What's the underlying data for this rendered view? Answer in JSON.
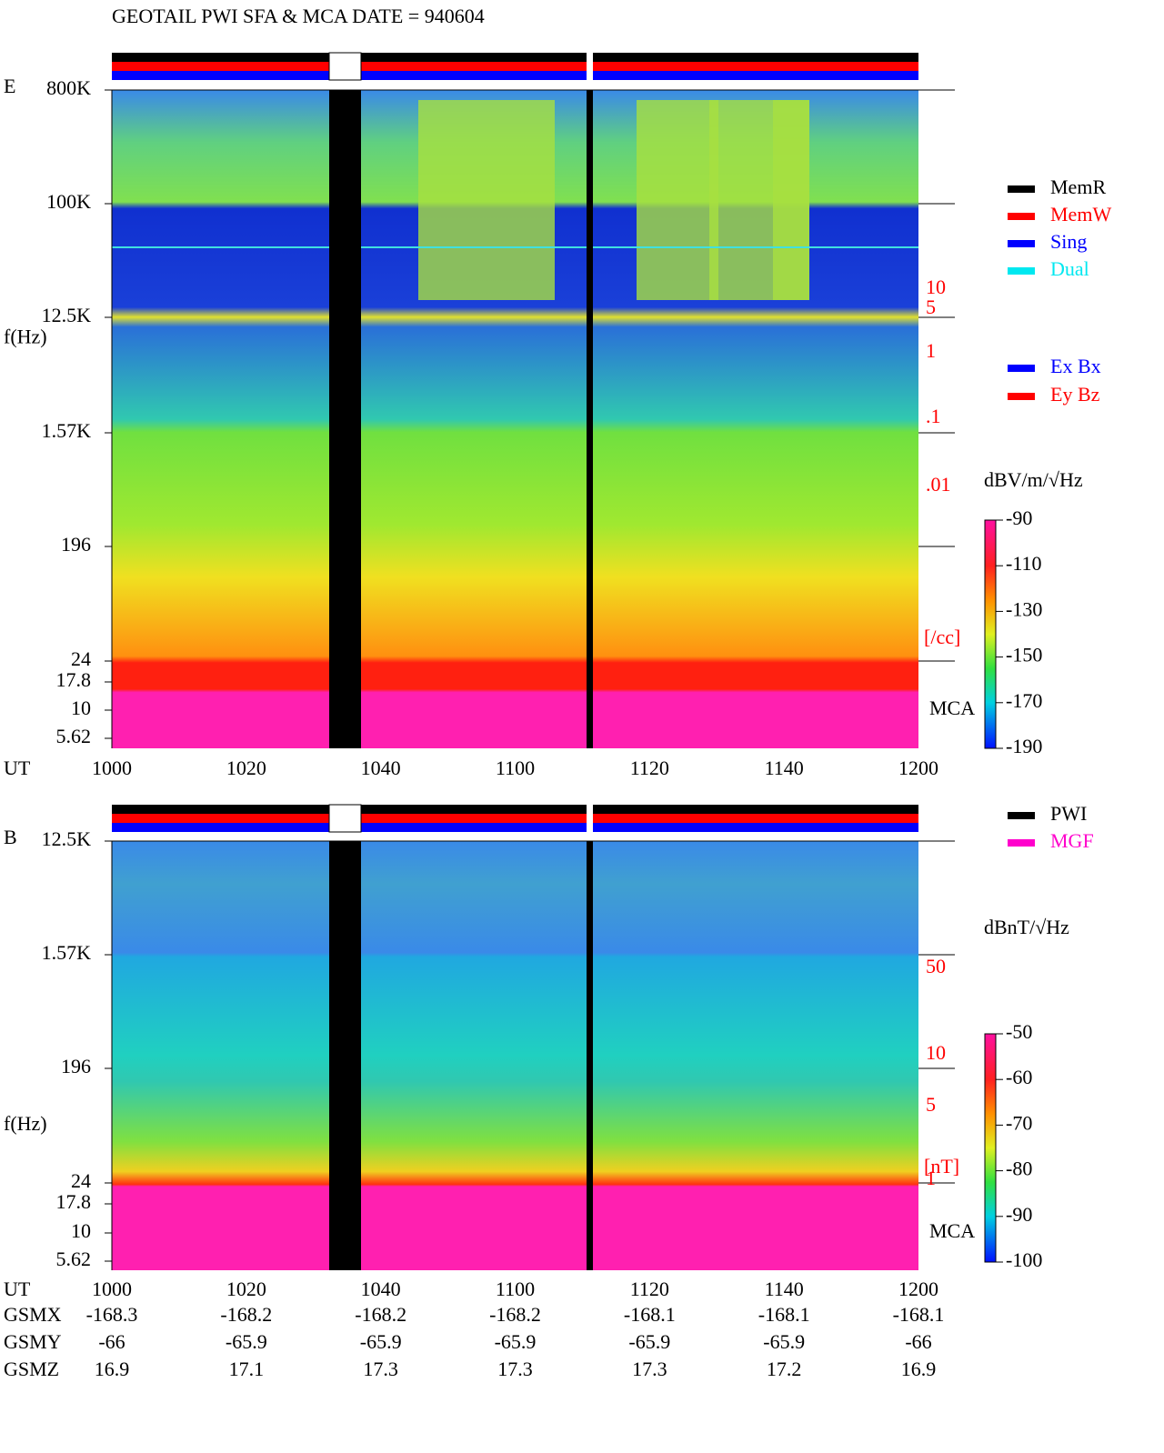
{
  "title": "GEOTAIL  PWI SFA & MCA   DATE = 940604",
  "panels": [
    {
      "label": "E",
      "y_label": "f(Hz)",
      "freq_ticks": [
        "800K",
        "100K",
        "12.5K",
        "1.57K",
        "196",
        "24",
        "17.8",
        "10",
        "5.62"
      ],
      "x_label": "UT",
      "x_ticks": [
        "1000",
        "1020",
        "1040",
        "1100",
        "1120",
        "1140",
        "1200"
      ],
      "right_ticks": [
        "10",
        "5",
        "1",
        ".1",
        ".01"
      ],
      "right_unit": "[/cc]",
      "mca_label": "MCA",
      "colorbar": {
        "unit": "dBV/m/√Hz",
        "range": [
          -190,
          -90
        ],
        "ticks": [
          -90,
          -110,
          -130,
          -150,
          -170,
          -190
        ]
      }
    },
    {
      "label": "B",
      "y_label": "f(Hz)",
      "freq_ticks": [
        "12.5K",
        "1.57K",
        "196",
        "24",
        "17.8",
        "10",
        "5.62"
      ],
      "x_label": "UT",
      "x_ticks": [
        "1000",
        "1020",
        "1040",
        "1100",
        "1120",
        "1140",
        "1200"
      ],
      "right_ticks": [
        "50",
        "10",
        "5",
        "1"
      ],
      "right_unit": "[nT]",
      "mca_label": "MCA",
      "colorbar": {
        "unit": "dBnT/√Hz",
        "range": [
          -100,
          -50
        ],
        "ticks": [
          -50,
          -60,
          -70,
          -80,
          -90,
          -100
        ]
      }
    }
  ],
  "legend_modes": [
    {
      "name": "MemR",
      "color": "#000000"
    },
    {
      "name": "MemW",
      "color": "#ff0000"
    },
    {
      "name": "Sing",
      "color": "#0000ff"
    },
    {
      "name": "Dual",
      "color": "#00e8f0"
    }
  ],
  "legend_components": [
    {
      "name": "Ex Bx",
      "color": "#0000ff"
    },
    {
      "name": "Ey Bz",
      "color": "#ff0000"
    }
  ],
  "legend_sources": [
    {
      "name": "PWI",
      "color": "#000000"
    },
    {
      "name": "MGF",
      "color": "#ff00cc"
    }
  ],
  "orbit": {
    "rows": [
      {
        "name": "GSMX",
        "values": [
          -168.3,
          -168.2,
          -168.2,
          -168.2,
          -168.1,
          -168.1,
          -168.1
        ]
      },
      {
        "name": "GSMY",
        "values": [
          -66.0,
          -65.9,
          -65.9,
          -65.9,
          -65.9,
          -65.9,
          -66.0
        ]
      },
      {
        "name": "GSMZ",
        "values": [
          16.9,
          17.1,
          17.3,
          17.3,
          17.3,
          17.2,
          16.9
        ]
      }
    ]
  }
}
